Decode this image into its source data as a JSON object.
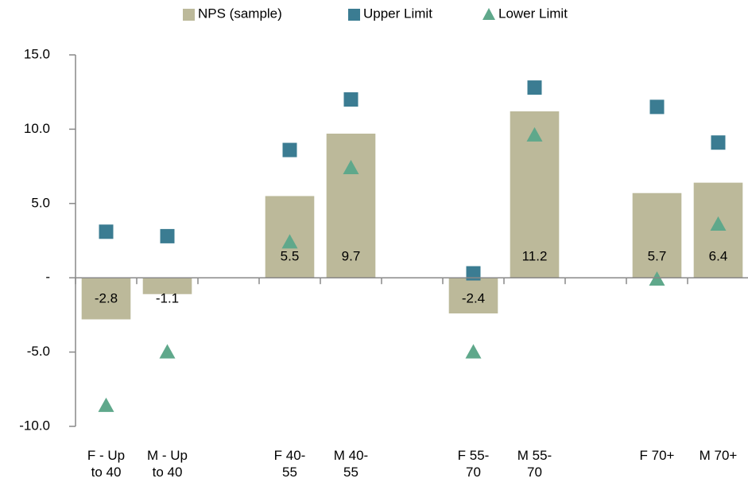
{
  "chart_data": {
    "type": "bar",
    "categories": [
      "F - Up to 40",
      "M - Up to 40",
      null,
      "F 40-55",
      "M 40-55",
      null,
      "F 55-70",
      "M 55-70",
      null,
      "F 70+",
      "M 70+"
    ],
    "series": [
      {
        "name": "NPS (sample)",
        "type": "bar",
        "color": "#bcb99a",
        "values": [
          -2.8,
          -1.1,
          null,
          5.5,
          9.7,
          null,
          -2.4,
          11.2,
          null,
          5.7,
          6.4
        ]
      },
      {
        "name": "Upper Limit",
        "type": "square",
        "color": "#3b7c92",
        "values": [
          3.1,
          2.8,
          null,
          8.6,
          12.0,
          null,
          0.3,
          12.8,
          null,
          11.5,
          9.1
        ]
      },
      {
        "name": "Lower Limit",
        "type": "triangle",
        "color": "#5fa88b",
        "values": [
          -8.6,
          -5.0,
          null,
          2.4,
          7.4,
          null,
          -5.0,
          9.6,
          null,
          -0.1,
          3.6
        ]
      }
    ],
    "ylim": [
      -10,
      15
    ],
    "yticks": [
      {
        "value": -10,
        "label": "-10.0"
      },
      {
        "value": -5,
        "label": "-5.0"
      },
      {
        "value": 0,
        "label": "-"
      },
      {
        "value": 5,
        "label": "5.0"
      },
      {
        "value": 10,
        "label": "10.0"
      },
      {
        "value": 15,
        "label": "15.0"
      }
    ],
    "legend": "top",
    "grid": false
  }
}
